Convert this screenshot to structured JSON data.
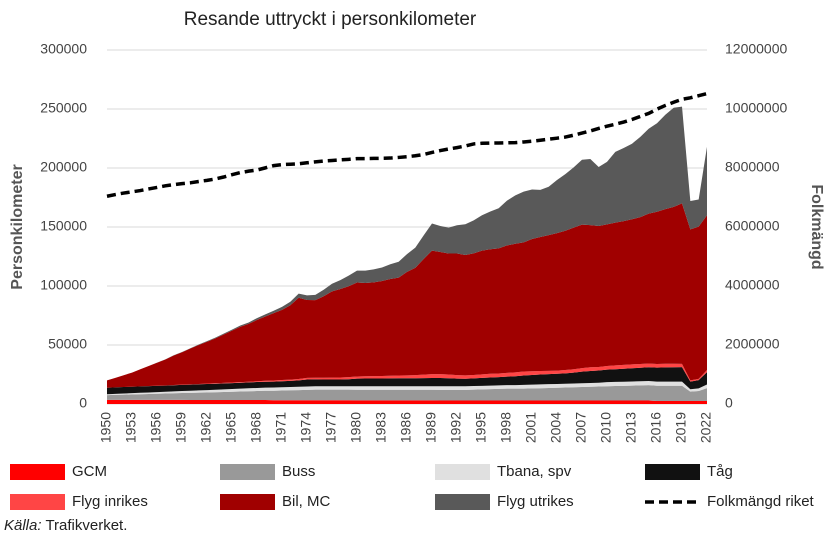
{
  "chart_data": {
    "type": "stacked_area",
    "title": "Resande uttryckt i personkilometer",
    "y_label": "Personkilometer",
    "y2_label": "Folkmängd",
    "source_label": "Källa:",
    "source": "Trafikverket.",
    "categories": [
      "1950",
      null,
      null,
      "1953",
      null,
      null,
      "1956",
      null,
      null,
      "1959",
      null,
      null,
      "1962",
      null,
      null,
      "1965",
      null,
      null,
      "1968",
      null,
      null,
      "1971",
      null,
      null,
      "1974",
      null,
      null,
      "1977",
      null,
      null,
      "1980",
      null,
      null,
      "1983",
      null,
      null,
      "1986",
      null,
      null,
      "1989",
      null,
      null,
      "1992",
      null,
      null,
      "1995",
      null,
      null,
      "1998",
      null,
      null,
      "2001",
      null,
      null,
      "2004",
      null,
      null,
      "2007",
      null,
      null,
      "2010",
      null,
      null,
      "2013",
      null,
      null,
      "2016",
      null,
      null,
      "2019",
      null,
      null,
      "2022"
    ],
    "ylim": [
      0,
      300000
    ],
    "yticks": [
      0,
      50000,
      100000,
      150000,
      200000,
      250000,
      300000
    ],
    "y2lim": [
      0,
      12000000
    ],
    "y2ticks": [
      0,
      2000000,
      4000000,
      6000000,
      8000000,
      10000000,
      12000000
    ],
    "grid": true,
    "series": [
      {
        "name": "GCM",
        "color": "#ff0000",
        "values": [
          3500,
          3500,
          3500,
          3500,
          3500,
          3500,
          3500,
          3500,
          3500,
          3500,
          3400,
          3400,
          3400,
          3400,
          3400,
          3400,
          3400,
          3400,
          3400,
          3400,
          3200,
          3200,
          3200,
          3200,
          3200,
          3200,
          3200,
          3200,
          3200,
          3200,
          3100,
          3100,
          3100,
          3100,
          3100,
          3100,
          3100,
          3100,
          3100,
          3100,
          3000,
          3000,
          3000,
          3000,
          3000,
          3000,
          3000,
          3000,
          3000,
          3000,
          3000,
          3000,
          3000,
          3000,
          3000,
          3000,
          3000,
          3000,
          3000,
          3000,
          3000,
          3000,
          3000,
          3000,
          3000,
          3000,
          2500,
          2500,
          2500,
          2500,
          2500,
          2500,
          2500
        ]
      },
      {
        "name": "Buss",
        "color": "#999999",
        "values": [
          4000,
          4200,
          4400,
          4600,
          4800,
          5000,
          5200,
          5400,
          5600,
          5800,
          6000,
          6200,
          6400,
          6600,
          6800,
          7000,
          7200,
          7400,
          7600,
          7800,
          8000,
          8200,
          8400,
          8600,
          8800,
          9000,
          9000,
          9000,
          9000,
          9000,
          9000,
          9000,
          9000,
          9000,
          9000,
          9000,
          9000,
          9000,
          9000,
          9000,
          9000,
          9000,
          9000,
          9000,
          9200,
          9400,
          9600,
          9800,
          10000,
          10000,
          10000,
          10200,
          10400,
          10600,
          10800,
          11000,
          11200,
          11400,
          11600,
          11800,
          12000,
          12200,
          12400,
          12600,
          12800,
          13000,
          13000,
          13000,
          13000,
          13000,
          8000,
          8500,
          11000
        ]
      },
      {
        "name": "Tbana, spv",
        "color": "#e0e0e0",
        "values": [
          800,
          900,
          1000,
          1100,
          1200,
          1300,
          1400,
          1500,
          1600,
          1700,
          1800,
          1900,
          2000,
          2100,
          2200,
          2300,
          2400,
          2500,
          2600,
          2700,
          2800,
          2800,
          2800,
          2800,
          2800,
          2800,
          2800,
          2800,
          2800,
          2800,
          2900,
          2900,
          2900,
          2900,
          2900,
          2900,
          2900,
          2900,
          2900,
          2900,
          3000,
          3000,
          3000,
          3000,
          3000,
          3000,
          3000,
          3000,
          3000,
          3000,
          3200,
          3200,
          3200,
          3200,
          3200,
          3200,
          3200,
          3200,
          3200,
          3200,
          3500,
          3500,
          3500,
          3500,
          3500,
          3500,
          3500,
          3500,
          3500,
          3500,
          2000,
          2200,
          3000
        ]
      },
      {
        "name": "Tåg",
        "color": "#111111",
        "values": [
          5500,
          5500,
          5500,
          5400,
          5400,
          5300,
          5300,
          5200,
          5200,
          5200,
          5200,
          5200,
          5200,
          5100,
          5100,
          5000,
          5000,
          5000,
          5000,
          5000,
          5000,
          5100,
          5200,
          5400,
          6000,
          5900,
          5800,
          5800,
          5800,
          6000,
          6500,
          6600,
          6600,
          6600,
          6700,
          6800,
          6800,
          6800,
          6900,
          7000,
          7000,
          6800,
          6500,
          6400,
          6500,
          6700,
          6900,
          7000,
          7200,
          7500,
          8000,
          8200,
          8400,
          8500,
          8600,
          8800,
          9200,
          9800,
          10200,
          10400,
          10600,
          10800,
          11000,
          11200,
          11400,
          11600,
          11800,
          12000,
          12100,
          12200,
          6500,
          7000,
          10500
        ]
      },
      {
        "name": "Flyg inrikes",
        "color": "#ff4545",
        "values": [
          0,
          0,
          0,
          0,
          0,
          100,
          100,
          100,
          200,
          200,
          200,
          300,
          300,
          400,
          400,
          500,
          500,
          600,
          700,
          800,
          900,
          1000,
          1100,
          1200,
          1300,
          1400,
          1500,
          1600,
          1700,
          1800,
          1800,
          1900,
          2000,
          2100,
          2200,
          2300,
          2500,
          2700,
          3000,
          3300,
          3300,
          3200,
          3000,
          2900,
          2900,
          3000,
          3100,
          3100,
          3200,
          3300,
          3300,
          3200,
          3000,
          2800,
          2700,
          2800,
          2900,
          3000,
          3100,
          3000,
          3100,
          3200,
          3300,
          3300,
          3200,
          3200,
          3100,
          3100,
          3000,
          2800,
          1000,
          1100,
          1800
        ]
      },
      {
        "name": "Bil, MC",
        "color": "#a00000",
        "values": [
          6200,
          8000,
          10000,
          12000,
          14500,
          17000,
          19500,
          22000,
          25000,
          27500,
          30400,
          33000,
          35500,
          38000,
          41000,
          44000,
          47000,
          49000,
          52000,
          54500,
          57100,
          59500,
          63000,
          68800,
          66000,
          65700,
          69000,
          73000,
          75000,
          77000,
          79700,
          79000,
          79500,
          80500,
          82000,
          83000,
          87700,
          91000,
          98000,
          104700,
          103500,
          102500,
          103000,
          102000,
          103000,
          104900,
          105500,
          106000,
          108000,
          109000,
          109500,
          112000,
          113500,
          115000,
          116500,
          118000,
          120000,
          121600,
          120500,
          119500,
          120000,
          121000,
          121800,
          123000,
          124500,
          127000,
          129000,
          131000,
          133000,
          136000,
          128000,
          129000,
          131200
        ]
      },
      {
        "name": "Flyg utrikes",
        "color": "#595959",
        "values": [
          0,
          0,
          0,
          0,
          0,
          0,
          100,
          100,
          200,
          200,
          300,
          400,
          500,
          600,
          700,
          800,
          1000,
          1200,
          1500,
          1800,
          2000,
          2500,
          3000,
          3500,
          4000,
          4500,
          5500,
          6500,
          7500,
          9000,
          10000,
          10500,
          11000,
          11500,
          12500,
          13500,
          15000,
          17000,
          20000,
          23000,
          22000,
          22000,
          24000,
          26000,
          28000,
          30000,
          32000,
          34000,
          38000,
          41000,
          43000,
          42000,
          40000,
          41000,
          45000,
          48000,
          51000,
          55000,
          56000,
          50000,
          53000,
          60000,
          62000,
          64000,
          68000,
          72000,
          75000,
          80000,
          84000,
          82000,
          24000,
          23000,
          58000
        ]
      },
      {
        "name": "Folkmängd riket",
        "color": "#000000",
        "axis": "y2",
        "values": [
          7042000,
          7099000,
          7151000,
          7192000,
          7235000,
          7290000,
          7341000,
          7396000,
          7436000,
          7471000,
          7498000,
          7542000,
          7581000,
          7627000,
          7695000,
          7773000,
          7844000,
          7893000,
          7932000,
          8004000,
          8081000,
          8115000,
          8129000,
          8144000,
          8177000,
          8208000,
          8236000,
          8255000,
          8276000,
          8294000,
          8318000,
          8320000,
          8325000,
          8329000,
          8337000,
          8358000,
          8382000,
          8415000,
          8458000,
          8527000,
          8591000,
          8644000,
          8692000,
          8745000,
          8816000,
          8837000,
          8844000,
          8847000,
          8854000,
          8861000,
          8883000,
          8909000,
          8941000,
          8976000,
          9011000,
          9048000,
          9113000,
          9183000,
          9256000,
          9341000,
          9416000,
          9483000,
          9556000,
          9645000,
          9747000,
          9851000,
          9995000,
          10120000,
          10230000,
          10328000,
          10379000,
          10452000,
          10522000
        ]
      }
    ]
  }
}
